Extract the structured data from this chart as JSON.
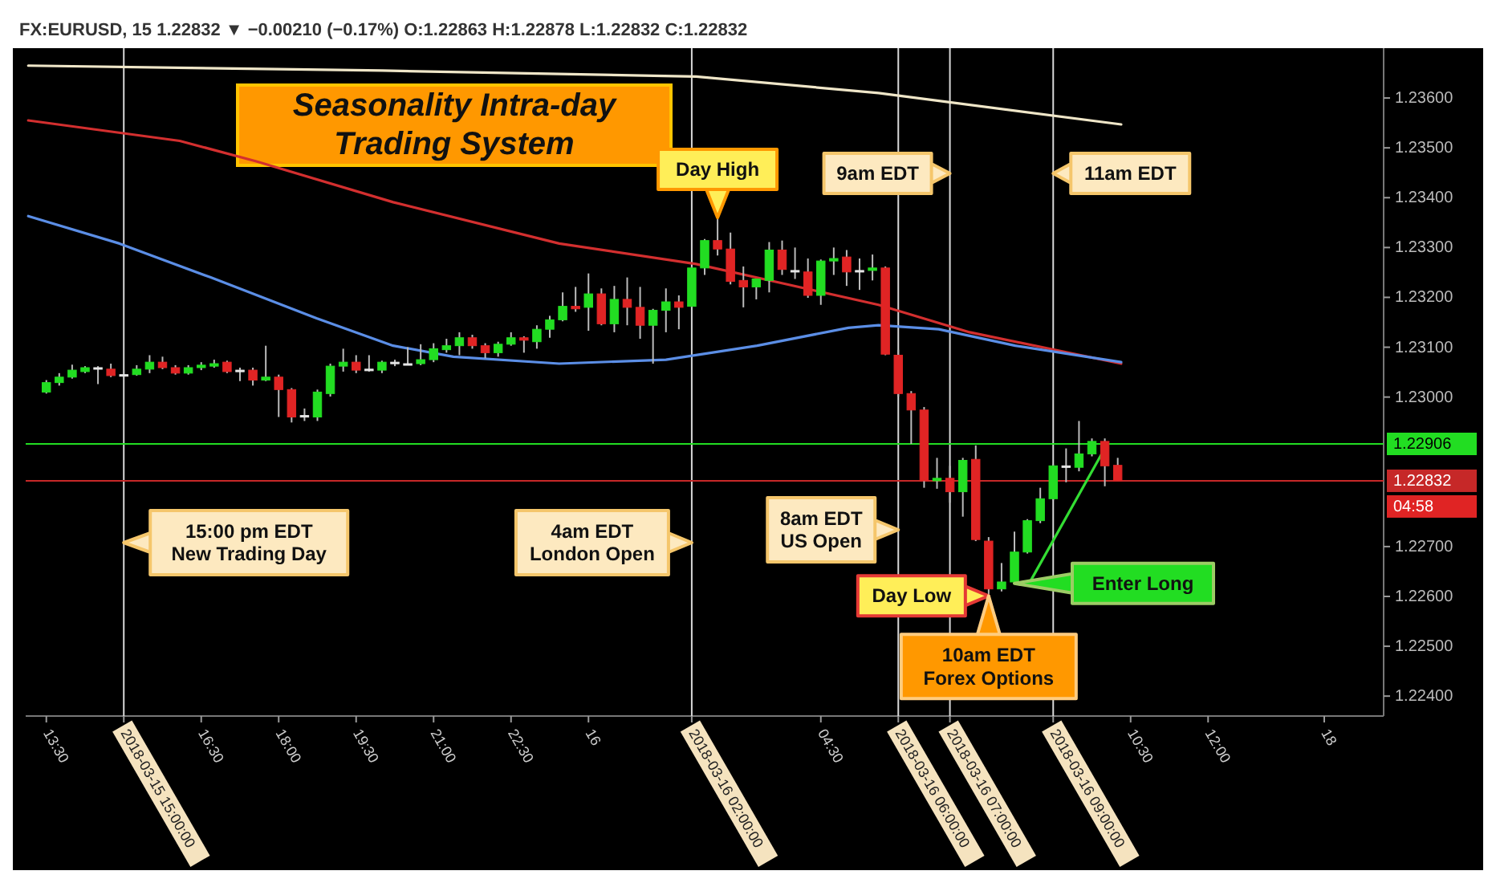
{
  "chart_data": {
    "type": "candlestick",
    "title": "Seasonality Intra-day\nTrading System",
    "subtitle": "FX:EURUSD, 15  1.22832 ▼ −0.00210 (−0.17%)  O:1.22863 H:1.22878 L:1.22832 C:1.22832",
    "x": [
      "2018-03-15T13:30",
      "2018-03-15T13:45",
      "2018-03-15T14:00",
      "2018-03-15T14:15",
      "2018-03-15T14:30",
      "2018-03-15T14:45",
      "2018-03-15T15:00",
      "2018-03-15T15:15",
      "2018-03-15T15:30",
      "2018-03-15T15:45",
      "2018-03-15T16:00",
      "2018-03-15T16:15",
      "2018-03-15T16:30",
      "2018-03-15T16:45",
      "2018-03-15T17:00",
      "2018-03-15T17:15",
      "2018-03-15T17:30",
      "2018-03-15T17:45",
      "2018-03-15T18:00",
      "2018-03-15T18:15",
      "2018-03-15T18:30",
      "2018-03-15T18:45",
      "2018-03-15T19:00",
      "2018-03-15T19:15",
      "2018-03-15T19:30",
      "2018-03-15T19:45",
      "2018-03-15T20:00",
      "2018-03-15T20:15",
      "2018-03-15T20:30",
      "2018-03-15T20:45",
      "2018-03-15T21:00",
      "2018-03-15T21:15",
      "2018-03-15T21:30",
      "2018-03-15T21:45",
      "2018-03-15T22:00",
      "2018-03-15T22:15",
      "2018-03-15T22:30",
      "2018-03-15T22:45",
      "2018-03-15T23:00",
      "2018-03-15T23:15",
      "2018-03-15T23:30",
      "2018-03-15T23:45",
      "2018-03-16T00:00",
      "2018-03-16T00:15",
      "2018-03-16T00:30",
      "2018-03-16T00:45",
      "2018-03-16T01:00",
      "2018-03-16T01:15",
      "2018-03-16T01:30",
      "2018-03-16T01:45",
      "2018-03-16T02:00",
      "2018-03-16T02:15",
      "2018-03-16T02:30",
      "2018-03-16T02:45",
      "2018-03-16T03:00",
      "2018-03-16T03:15",
      "2018-03-16T03:30",
      "2018-03-16T03:45",
      "2018-03-16T04:00",
      "2018-03-16T04:15",
      "2018-03-16T04:30",
      "2018-03-16T04:45",
      "2018-03-16T05:00",
      "2018-03-16T05:15",
      "2018-03-16T05:30",
      "2018-03-16T05:45",
      "2018-03-16T06:00",
      "2018-03-16T06:15",
      "2018-03-16T06:30",
      "2018-03-16T06:45",
      "2018-03-16T07:00",
      "2018-03-16T07:15",
      "2018-03-16T07:30",
      "2018-03-16T07:45",
      "2018-03-16T08:00",
      "2018-03-16T08:15",
      "2018-03-16T08:30",
      "2018-03-16T08:45",
      "2018-03-16T09:00",
      "2018-03-16T09:15",
      "2018-03-16T09:30",
      "2018-03-16T09:45",
      "2018-03-16T10:00",
      "2018-03-16T10:15"
    ],
    "ohlc": [
      [
        1.2301,
        1.23034,
        1.23007,
        1.23029
      ],
      [
        1.23029,
        1.23048,
        1.23023,
        1.2304
      ],
      [
        1.2304,
        1.23065,
        1.23037,
        1.23054
      ],
      [
        1.23051,
        1.23062,
        1.23048,
        1.23059
      ],
      [
        1.23059,
        1.23062,
        1.23026,
        1.23059
      ],
      [
        1.23056,
        1.23067,
        1.2304,
        1.23043
      ],
      [
        1.23045,
        1.23054,
        1.2304,
        1.23045
      ],
      [
        1.23045,
        1.23064,
        1.23043,
        1.23056
      ],
      [
        1.23056,
        1.23084,
        1.23048,
        1.2307
      ],
      [
        1.2307,
        1.23081,
        1.23056,
        1.23059
      ],
      [
        1.23059,
        1.23064,
        1.23045,
        1.23048
      ],
      [
        1.23048,
        1.23064,
        1.23045,
        1.23059
      ],
      [
        1.23059,
        1.2307,
        1.23054,
        1.23064
      ],
      [
        1.23062,
        1.23075,
        1.23059,
        1.23067
      ],
      [
        1.2307,
        1.23073,
        1.23048,
        1.23051
      ],
      [
        1.23054,
        1.23059,
        1.23032,
        1.23054
      ],
      [
        1.23054,
        1.23059,
        1.23023,
        1.23034
      ],
      [
        1.23034,
        1.23103,
        1.23032,
        1.2304
      ],
      [
        1.2304,
        1.23045,
        1.2296,
        1.23015
      ],
      [
        1.23015,
        1.23018,
        1.22949,
        1.2296
      ],
      [
        1.22963,
        1.22977,
        1.22952,
        1.22963
      ],
      [
        1.2296,
        1.23015,
        1.22952,
        1.2301
      ],
      [
        1.23007,
        1.23067,
        1.23001,
        1.23062
      ],
      [
        1.23062,
        1.23097,
        1.23051,
        1.2307
      ],
      [
        1.2307,
        1.23084,
        1.23048,
        1.23054
      ],
      [
        1.23056,
        1.23084,
        1.23051,
        1.23056
      ],
      [
        1.23054,
        1.23073,
        1.23048,
        1.2307
      ],
      [
        1.2307,
        1.23075,
        1.23062,
        1.2307
      ],
      [
        1.23067,
        1.231,
        1.23064,
        1.23067
      ],
      [
        1.23067,
        1.23106,
        1.23064,
        1.23075
      ],
      [
        1.23075,
        1.23108,
        1.2307,
        1.23097
      ],
      [
        1.23095,
        1.23117,
        1.23089,
        1.23103
      ],
      [
        1.23103,
        1.2313,
        1.23084,
        1.23119
      ],
      [
        1.23119,
        1.23125,
        1.23097,
        1.23103
      ],
      [
        1.23103,
        1.23108,
        1.23078,
        1.23089
      ],
      [
        1.23089,
        1.23111,
        1.23081,
        1.23106
      ],
      [
        1.23106,
        1.2313,
        1.23103,
        1.23119
      ],
      [
        1.23119,
        1.23122,
        1.23089,
        1.23114
      ],
      [
        1.23111,
        1.23144,
        1.23097,
        1.23136
      ],
      [
        1.23136,
        1.23163,
        1.23119,
        1.23155
      ],
      [
        1.23155,
        1.2321,
        1.23152,
        1.23182
      ],
      [
        1.23182,
        1.23221,
        1.23171,
        1.23177
      ],
      [
        1.2318,
        1.23248,
        1.23133,
        1.23207
      ],
      [
        1.23207,
        1.23218,
        1.23144,
        1.23147
      ],
      [
        1.23147,
        1.23223,
        1.2313,
        1.23196
      ],
      [
        1.23196,
        1.2324,
        1.23144,
        1.2318
      ],
      [
        1.2318,
        1.23221,
        1.23117,
        1.23144
      ],
      [
        1.23144,
        1.23177,
        1.23067,
        1.23174
      ],
      [
        1.23174,
        1.23218,
        1.2313,
        1.23191
      ],
      [
        1.23191,
        1.23204,
        1.23136,
        1.2318
      ],
      [
        1.23182,
        1.23262,
        1.2318,
        1.23259
      ],
      [
        1.23259,
        1.23317,
        1.23245,
        1.23314
      ],
      [
        1.23314,
        1.2336,
        1.23284,
        1.23297
      ],
      [
        1.23297,
        1.2333,
        1.23226,
        1.23232
      ],
      [
        1.23234,
        1.23262,
        1.2318,
        1.23221
      ],
      [
        1.23221,
        1.23237,
        1.23196,
        1.23237
      ],
      [
        1.23234,
        1.23311,
        1.2321,
        1.23295
      ],
      [
        1.23295,
        1.23314,
        1.23245,
        1.23256
      ],
      [
        1.23254,
        1.233,
        1.23237,
        1.23254
      ],
      [
        1.23251,
        1.23278,
        1.23199,
        1.23204
      ],
      [
        1.23204,
        1.23276,
        1.23185,
        1.23273
      ],
      [
        1.23273,
        1.233,
        1.23245,
        1.23278
      ],
      [
        1.23281,
        1.23295,
        1.23223,
        1.23251
      ],
      [
        1.23254,
        1.23278,
        1.23215,
        1.23254
      ],
      [
        1.23254,
        1.23286,
        1.23234,
        1.23259
      ],
      [
        1.23259,
        1.23262,
        1.23084,
        1.23086
      ],
      [
        1.23084,
        1.23095,
        1.23001,
        1.23007
      ],
      [
        1.23007,
        1.23012,
        1.22906,
        1.22974
      ],
      [
        1.22974,
        1.2298,
        1.22818,
        1.22832
      ],
      [
        1.22832,
        1.22878,
        1.22816,
        1.22837
      ],
      [
        1.22837,
        1.22862,
        1.22788,
        1.2281
      ],
      [
        1.2281,
        1.22878,
        1.2276,
        1.22873
      ],
      [
        1.22875,
        1.22903,
        1.22711,
        1.22714
      ],
      [
        1.22711,
        1.22719,
        1.22601,
        1.22615
      ],
      [
        1.22615,
        1.22667,
        1.2261,
        1.22629
      ],
      [
        1.22629,
        1.2273,
        1.22626,
        1.22689
      ],
      [
        1.22689,
        1.22755,
        1.22686,
        1.22752
      ],
      [
        1.22752,
        1.22818,
        1.22747,
        1.22796
      ],
      [
        1.22796,
        1.22865,
        1.22793,
        1.22862
      ],
      [
        1.22862,
        1.22897,
        1.22829,
        1.22862
      ],
      [
        1.22859,
        1.22952,
        1.22851,
        1.22886
      ],
      [
        1.22886,
        1.22917,
        1.22881,
        1.22911
      ],
      [
        1.22911,
        1.22917,
        1.22821,
        1.22862
      ],
      [
        1.22863,
        1.22878,
        1.22832,
        1.22832
      ]
    ],
    "series": [
      {
        "type": "line",
        "color": "#efe6c8",
        "x": [
          "2018-03-15T13:09",
          "2018-03-15T20:00",
          "2018-03-16T02:05",
          "2018-03-16T05:37",
          "2018-03-16T10:19"
        ],
        "values": [
          1.23665,
          1.23655,
          1.23643,
          1.2361,
          1.23547
        ]
      },
      {
        "type": "line",
        "color": "#d32f2f",
        "x": [
          "2018-03-15T13:09",
          "2018-03-15T16:05",
          "2018-03-15T17:34",
          "2018-03-15T20:13",
          "2018-03-15T23:26",
          "2018-03-16T02:05",
          "2018-03-16T03:51",
          "2018-03-16T05:37",
          "2018-03-16T07:23",
          "2018-03-16T10:19"
        ],
        "values": [
          1.23555,
          1.23514,
          1.23473,
          1.23391,
          1.23308,
          1.23267,
          1.23226,
          1.23185,
          1.2313,
          1.23067
        ]
      },
      {
        "type": "line",
        "color": "#5b8ee6",
        "x": [
          "2018-03-15T13:09",
          "2018-03-15T14:55",
          "2018-03-15T16:41",
          "2018-03-15T18:44",
          "2018-03-15T20:13",
          "2018-03-15T21:23",
          "2018-03-15T23:26",
          "2018-03-16T01:30",
          "2018-03-16T03:16",
          "2018-03-16T05:02",
          "2018-03-16T05:37",
          "2018-03-16T06:47",
          "2018-03-16T08:16",
          "2018-03-16T10:19"
        ],
        "values": [
          1.23363,
          1.23308,
          1.2324,
          1.23158,
          1.23103,
          1.23081,
          1.23067,
          1.23075,
          1.23103,
          1.23139,
          1.23144,
          1.23136,
          1.23103,
          1.2307
        ]
      },
      {
        "type": "line",
        "color": "#33dd33",
        "x": [
          "2018-03-16T08:34",
          "2018-03-16T10:00"
        ],
        "values": [
          1.22632,
          1.22897
        ]
      }
    ],
    "xlim": [
      "2018-03-15T13:06",
      "2018-03-16T15:24"
    ],
    "ylim": [
      1.2236,
      1.237
    ],
    "xticks": [
      {
        "value": "2018-03-15T13:30",
        "label": "13:30"
      },
      {
        "value": "2018-03-15T15:00",
        "label": "2018-03-15 15:00:00"
      },
      {
        "value": "2018-03-15T16:30",
        "label": "16:30"
      },
      {
        "value": "2018-03-15T18:00",
        "label": "18:00"
      },
      {
        "value": "2018-03-15T19:30",
        "label": "19:30"
      },
      {
        "value": "2018-03-15T21:00",
        "label": "21:00"
      },
      {
        "value": "2018-03-15T22:30",
        "label": "22:30"
      },
      {
        "value": "2018-03-16",
        "label": "16"
      },
      {
        "value": "2018-03-16T02:00",
        "label": "2018-03-16 02:00:00"
      },
      {
        "value": "2018-03-16T04:30",
        "label": "04:30"
      },
      {
        "value": "2018-03-16T06:00",
        "label": "2018-03-16 06:00:00"
      },
      {
        "value": "2018-03-16T07:00",
        "label": "2018-03-16 07:00:00"
      },
      {
        "value": "2018-03-16T09:00",
        "label": "2018-03-16 09:00:00"
      },
      {
        "value": "2018-03-16T10:30",
        "label": "10:30"
      },
      {
        "value": "2018-03-16T12:00",
        "label": "12:00"
      },
      {
        "value": "2018-03-16T14:15",
        "label": "18"
      }
    ],
    "yticks": [
      {
        "value": 1.224,
        "label": "1.22400"
      },
      {
        "value": 1.225,
        "label": "1.22500"
      },
      {
        "value": 1.226,
        "label": "1.22600"
      },
      {
        "value": 1.227,
        "label": "1.22700"
      },
      {
        "value": 1.23,
        "label": "1.23000"
      },
      {
        "value": 1.231,
        "label": "1.23100"
      },
      {
        "value": 1.232,
        "label": "1.23200"
      },
      {
        "value": 1.233,
        "label": "1.23300"
      },
      {
        "value": 1.234,
        "label": "1.23400"
      },
      {
        "value": 1.235,
        "label": "1.23500"
      },
      {
        "value": 1.236,
        "label": "1.23600"
      }
    ],
    "ref_lines": [
      {
        "axis": "x",
        "value": "2018-03-15T15:00",
        "label": "15:00 pm EDT\nNew Trading Day",
        "color": "#d8d8d8"
      },
      {
        "axis": "x",
        "value": "2018-03-16T02:00",
        "label": "4am EDT\nLondon Open",
        "color": "#d8d8d8"
      },
      {
        "axis": "x",
        "value": "2018-03-16T06:00",
        "label": "8am EDT\nUS Open",
        "color": "#d8d8d8"
      },
      {
        "axis": "x",
        "value": "2018-03-16T07:00",
        "label": "9am EDT",
        "color": "#d8d8d8"
      },
      {
        "axis": "x",
        "value": "2018-03-16T09:00",
        "label": "11am EDT",
        "color": "#d8d8d8"
      },
      {
        "axis": "y",
        "value": 1.22906,
        "label": "1.22906",
        "color": "#22dd22"
      },
      {
        "axis": "y",
        "value": 1.22832,
        "label": "1.22832",
        "color": "#c62828"
      }
    ],
    "annotations": [
      {
        "text": "Day High",
        "x": "2018-03-16T02:30",
        "y": 1.2336
      },
      {
        "text": "Day Low",
        "x": "2018-03-16T07:45",
        "y": 1.22601
      },
      {
        "text": "10am EDT\nForex Options",
        "x": "2018-03-16T07:45",
        "y": 1.22601
      },
      {
        "text": "Enter Long",
        "x": "2018-03-16T08:15",
        "y": 1.22626
      },
      "04:58"
    ]
  }
}
